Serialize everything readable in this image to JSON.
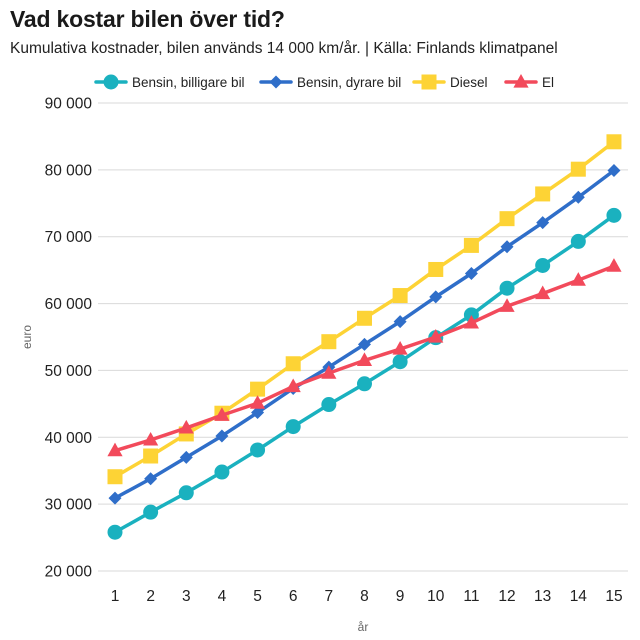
{
  "chart_data": {
    "type": "line",
    "title": "Vad kostar bilen över tid?",
    "subtitle": "Kumulativa kostnader, bilen används 14 000 km/år. | Källa: Finlands klimatpanel",
    "xlabel": "år",
    "ylabel": "euro",
    "x": [
      1,
      2,
      3,
      4,
      5,
      6,
      7,
      8,
      9,
      10,
      11,
      12,
      13,
      14,
      15
    ],
    "ylim": [
      20000,
      90000
    ],
    "yticks": [
      20000,
      30000,
      40000,
      50000,
      60000,
      70000,
      80000,
      90000
    ],
    "ytick_labels": [
      "20 000",
      "30 000",
      "40 000",
      "50 000",
      "60 000",
      "70 000",
      "80 000",
      "90 000"
    ],
    "grid": true,
    "legend_position": "top",
    "series": [
      {
        "name": "Bensin, billigare bil",
        "color": "#1ab1bf",
        "marker": "circle",
        "values": [
          25800,
          28800,
          31700,
          34800,
          38100,
          41600,
          44900,
          48000,
          51300,
          54900,
          58300,
          62300,
          65700,
          69300,
          73200
        ]
      },
      {
        "name": "Bensin, dyrare bil",
        "color": "#2f6ec9",
        "marker": "diamond",
        "values": [
          30900,
          33800,
          37000,
          40200,
          43700,
          47300,
          50500,
          53900,
          57300,
          61000,
          64500,
          68500,
          72100,
          75900,
          79900
        ]
      },
      {
        "name": "Diesel",
        "color": "#fdd335",
        "marker": "square",
        "values": [
          34100,
          37200,
          40500,
          43600,
          47200,
          51000,
          54300,
          57800,
          61200,
          65100,
          68700,
          72700,
          76400,
          80100,
          84200
        ]
      },
      {
        "name": "El",
        "color": "#f24a5b",
        "marker": "triangle",
        "values": [
          38000,
          39600,
          41400,
          43300,
          45100,
          47600,
          49600,
          51500,
          53200,
          55000,
          57100,
          59600,
          61500,
          63500,
          65600
        ]
      }
    ]
  }
}
